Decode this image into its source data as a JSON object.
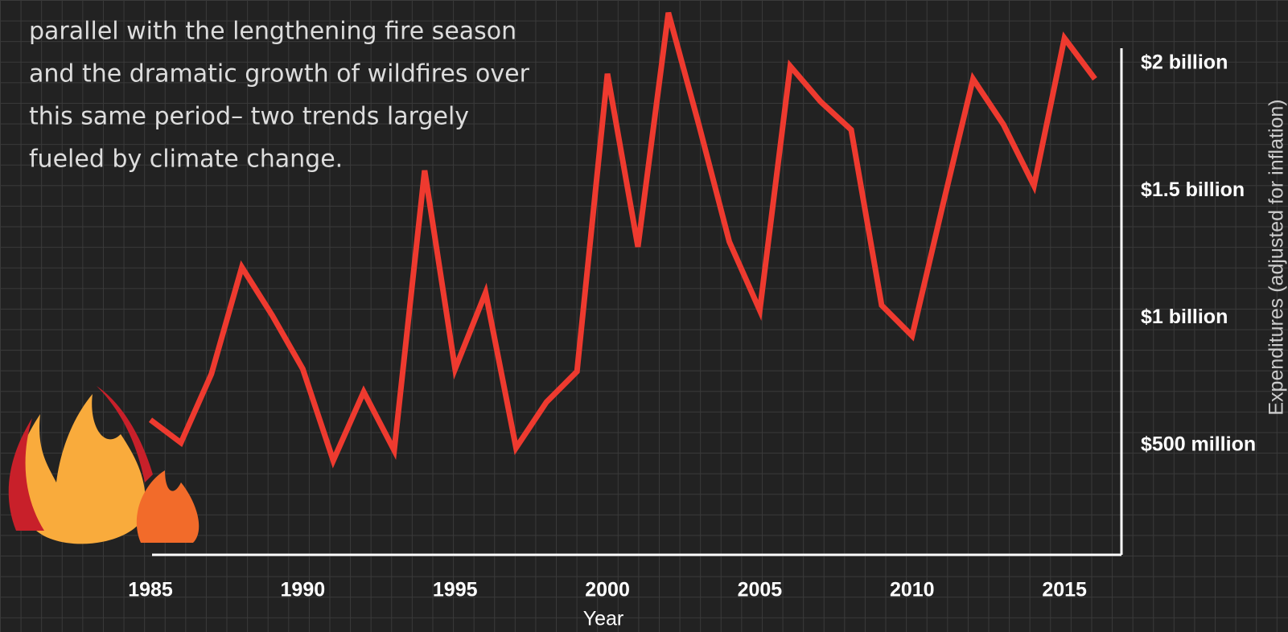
{
  "intro_lines": [
    "parallel with the lengthening fire season",
    "and the dramatic growth of wildfires over",
    "this same period– two trends largely",
    "fueled by climate change."
  ],
  "chart_data": {
    "type": "line",
    "x": [
      1985,
      1986,
      1987,
      1988,
      1989,
      1990,
      1991,
      1992,
      1993,
      1994,
      1995,
      1996,
      1997,
      1998,
      1999,
      2000,
      2001,
      2002,
      2003,
      2004,
      2005,
      2006,
      2007,
      2008,
      2009,
      2010,
      2011,
      2012,
      2013,
      2014,
      2015,
      2016
    ],
    "values": [
      0.6,
      0.51,
      0.78,
      1.2,
      1.01,
      0.8,
      0.44,
      0.71,
      0.48,
      1.58,
      0.8,
      1.1,
      0.49,
      0.67,
      0.79,
      1.96,
      1.28,
      2.2,
      1.76,
      1.3,
      1.03,
      1.99,
      1.85,
      1.74,
      1.05,
      0.93,
      1.44,
      1.94,
      1.76,
      1.52,
      2.1,
      1.94
    ],
    "color": "#ee3a2f",
    "xlim": [
      1985,
      2016
    ],
    "xticks": [
      1985,
      1990,
      1995,
      2000,
      2005,
      2010,
      2015
    ],
    "ylim": [
      0,
      2.25
    ],
    "yticks": [
      {
        "value": 0.5,
        "label": "$500 million"
      },
      {
        "value": 1,
        "label": "$1 billion"
      },
      {
        "value": 1.5,
        "label": "$1.5 billion"
      },
      {
        "value": 2,
        "label": "$2 billion"
      }
    ],
    "xlabel": "Year",
    "ylabel": "Expenditures (adjusted for inflation)"
  }
}
